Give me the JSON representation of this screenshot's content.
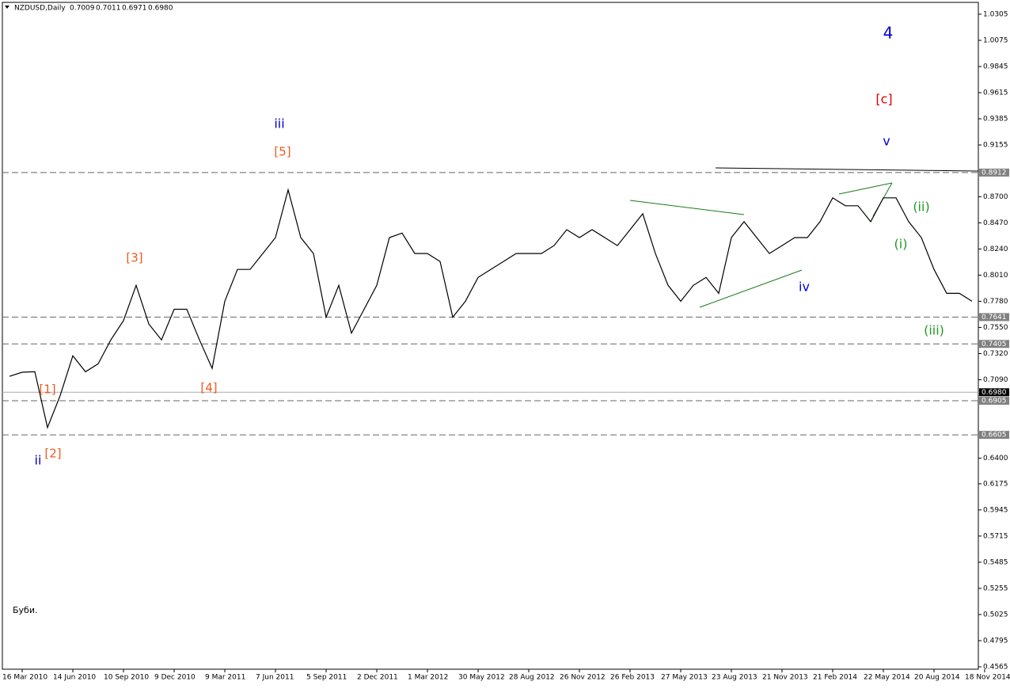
{
  "chart_data": {
    "type": "line",
    "title": "NZDUSD,Daily",
    "ohlc": [
      "0.7009",
      "0.7011",
      "0.6971",
      "0.6980"
    ],
    "note": "Буби.",
    "categories": [
      null,
      "16 Mar 2010",
      null,
      null,
      null,
      "14 Jun 2010",
      null,
      null,
      null,
      "10 Sep 2010",
      null,
      null,
      null,
      "9 Dec 2010",
      null,
      null,
      null,
      "9 Mar 2011",
      null,
      null,
      null,
      "7 Jun 2011",
      null,
      null,
      null,
      "5 Sep 2011",
      null,
      null,
      null,
      "2 Dec 2011",
      null,
      null,
      null,
      "1 Mar 2012",
      null,
      null,
      null,
      "30 May 2012",
      null,
      null,
      null,
      "28 Aug 2012",
      null,
      null,
      null,
      "26 Nov 2012",
      null,
      null,
      null,
      "26 Feb 2013",
      null,
      null,
      null,
      "27 May 2013",
      null,
      null,
      null,
      "23 Aug 2013",
      null,
      null,
      null,
      "21 Nov 2013",
      null,
      null,
      null,
      "21 Feb 2014",
      null,
      null,
      null,
      "22 May 2014",
      null,
      null,
      null,
      "20 Aug 2014",
      null,
      null,
      null,
      "18 Nov 2014"
    ],
    "series": [
      {
        "name": "NZDUSD",
        "color": "#000000",
        "values": [
          0.712,
          0.7156,
          0.716,
          0.667,
          0.695,
          0.73,
          0.716,
          0.723,
          0.744,
          0.761,
          0.792,
          0.758,
          0.744,
          0.771,
          0.771,
          0.744,
          0.719,
          0.778,
          0.806,
          0.806,
          0.82,
          0.834,
          0.876,
          0.834,
          0.82,
          0.764,
          0.792,
          0.75,
          0.771,
          0.792,
          0.834,
          0.838,
          0.82,
          0.82,
          0.813,
          0.764,
          0.778,
          0.799,
          0.806,
          0.813,
          0.82,
          0.82,
          0.82,
          0.827,
          0.841,
          0.834,
          0.841,
          0.834,
          0.827,
          0.841,
          0.855,
          0.82,
          0.792,
          0.778,
          0.792,
          0.799,
          0.785,
          0.834,
          0.848,
          0.834,
          0.82,
          0.827,
          0.834,
          0.834,
          0.848,
          0.869,
          0.862,
          0.862,
          0.848,
          0.869,
          0.869,
          0.848,
          0.834,
          0.806,
          0.785,
          0.785,
          0.778,
          null
        ]
      }
    ],
    "ylim": [
      0.4544,
      1.0409
    ],
    "yticks": [
      1.0305,
      1.0075,
      0.9845,
      0.9615,
      0.9385,
      0.9155,
      {
        "value": 0.87,
        "label": "0.8700"
      },
      {
        "value": 0.847,
        "label": "0.8470"
      },
      {
        "value": 0.824,
        "label": "0.8240"
      },
      {
        "value": 0.801,
        "label": "0.8010"
      },
      {
        "value": 0.778,
        "label": "0.7780"
      },
      {
        "value": 0.755,
        "label": "0.7550"
      },
      {
        "value": 0.732,
        "label": "0.7320"
      },
      {
        "value": 0.709,
        "label": "0.7090"
      },
      {
        "value": 0.64,
        "label": "0.6400"
      },
      0.6175,
      0.5945,
      0.5715,
      0.5485,
      0.5255,
      0.5025,
      0.4795,
      0.4565
    ],
    "levels": [
      0.8912,
      0.7641,
      0.7405,
      0.6905,
      0.6605
    ],
    "current_price": {
      "value": 0.698,
      "label": "0.6980"
    },
    "annotations": [
      {
        "text": "4",
        "color": "#0000cc"
      },
      {
        "text": "[c]",
        "color": "#e00000"
      },
      {
        "text": "v",
        "color": "#0000cc"
      },
      {
        "text": "iii",
        "color": "#0000cc"
      },
      {
        "text": "[5]",
        "color": "#f05a1e"
      },
      {
        "text": "[3]",
        "color": "#f05a1e"
      },
      {
        "text": "[4]",
        "color": "#f05a1e"
      },
      {
        "text": "[1]",
        "color": "#f05a1e"
      },
      {
        "text": "[2]",
        "color": "#f05a1e"
      },
      {
        "text": "ii",
        "color": "#0000cc"
      },
      {
        "text": "iv",
        "color": "#0000cc"
      },
      {
        "text": "(ii)",
        "color": "#229922"
      },
      {
        "text": "(i)",
        "color": "#229922"
      },
      {
        "text": "(iii)",
        "color": "#229922"
      }
    ]
  }
}
